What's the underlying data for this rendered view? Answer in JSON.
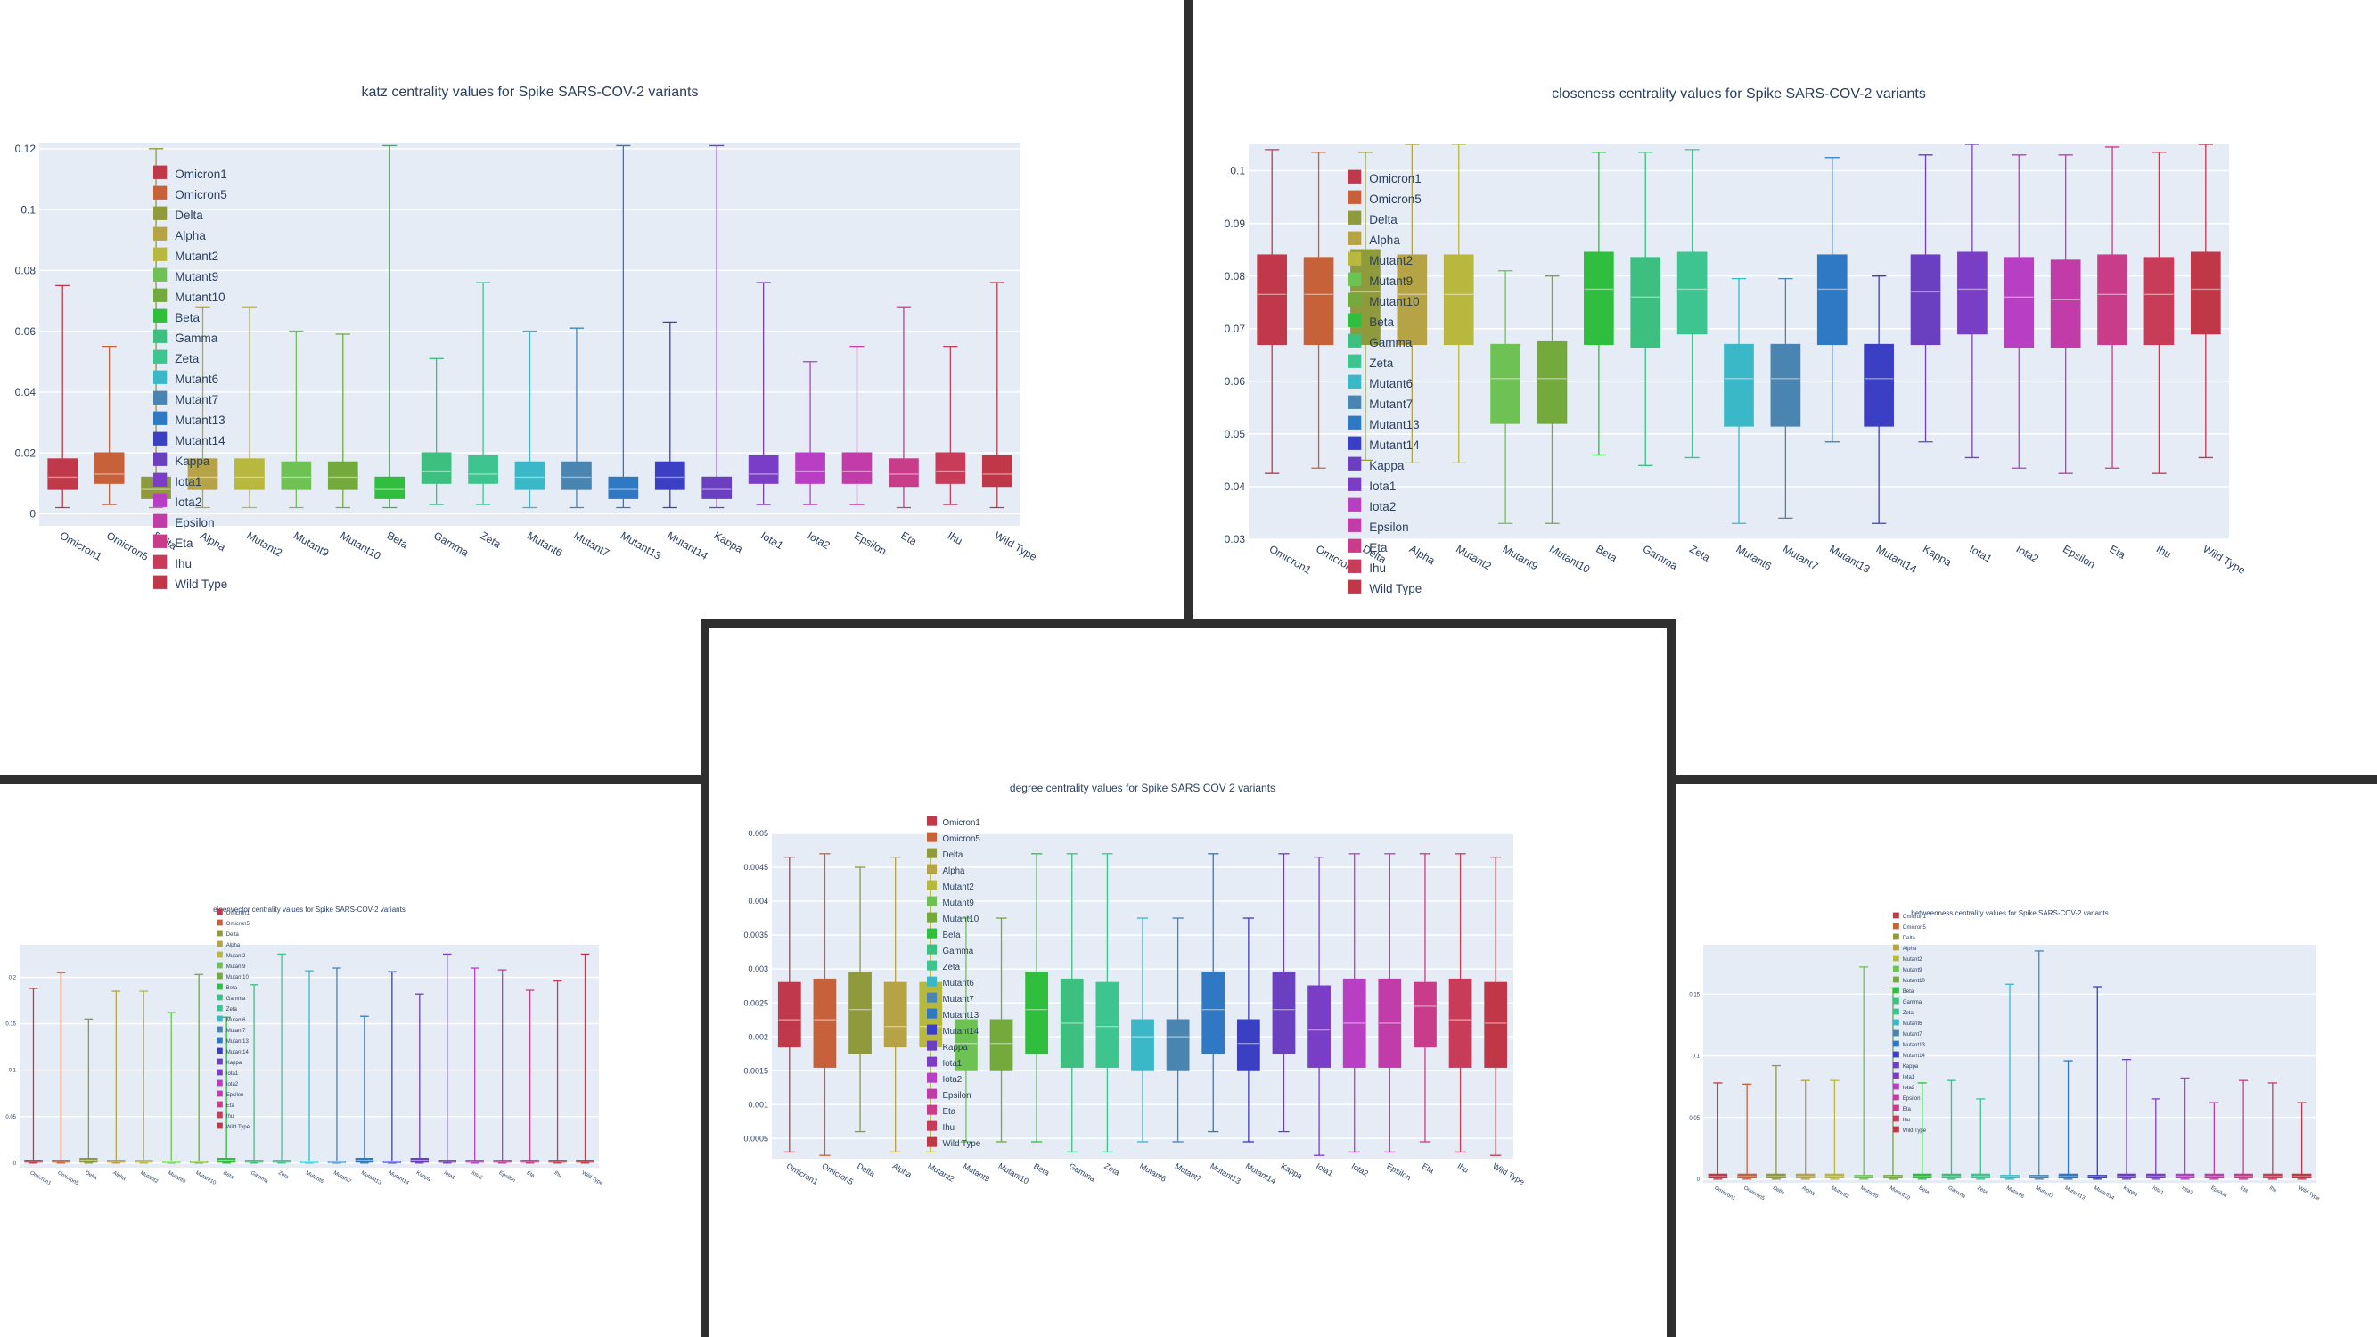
{
  "variants": [
    "Omicron1",
    "Omicron5",
    "Delta",
    "Alpha",
    "Mutant2",
    "Mutant9",
    "Mutant10",
    "Beta",
    "Gamma",
    "Zeta",
    "Mutant6",
    "Mutant7",
    "Mutant13",
    "Mutant14",
    "Kappa",
    "Iota1",
    "Iota2",
    "Epsilon",
    "Eta",
    "Ihu",
    "Wild Type"
  ],
  "colors": [
    "#c0394a",
    "#c7613a",
    "#8f9a3c",
    "#b5a345",
    "#b8b83f",
    "#6ec254",
    "#74a93b",
    "#2fbe3d",
    "#3dbf80",
    "#3ec48f",
    "#3ab8c8",
    "#4a84b0",
    "#2f78c4",
    "#3b3fc4",
    "#6a3fc0",
    "#7a3ec6",
    "#b83ec4",
    "#c13ca8",
    "#c83c8a",
    "#c83c5a",
    "#c03848"
  ],
  "chart_data": [
    {
      "id": "katz",
      "type": "box",
      "title": "katz centrality values for Spike SARS-COV-2 variants",
      "ylim": [
        -0.004,
        0.122
      ],
      "yticks": [
        0,
        0.02,
        0.04,
        0.06,
        0.08,
        0.1,
        0.12
      ],
      "ytick_labels": [
        "0",
        "0.02",
        "0.04",
        "0.06",
        "0.08",
        "0.1",
        "0.12"
      ],
      "grid": true,
      "legend": "right",
      "boxes": [
        {
          "min": 0.002,
          "q1": 0.008,
          "median": 0.012,
          "q3": 0.018,
          "max": 0.075
        },
        {
          "min": 0.003,
          "q1": 0.01,
          "median": 0.013,
          "q3": 0.02,
          "max": 0.055
        },
        {
          "min": 0.002,
          "q1": 0.005,
          "median": 0.008,
          "q3": 0.012,
          "max": 0.12
        },
        {
          "min": 0.002,
          "q1": 0.008,
          "median": 0.012,
          "q3": 0.018,
          "max": 0.068
        },
        {
          "min": 0.002,
          "q1": 0.008,
          "median": 0.012,
          "q3": 0.018,
          "max": 0.068
        },
        {
          "min": 0.002,
          "q1": 0.008,
          "median": 0.012,
          "q3": 0.017,
          "max": 0.06
        },
        {
          "min": 0.002,
          "q1": 0.008,
          "median": 0.012,
          "q3": 0.017,
          "max": 0.059
        },
        {
          "min": 0.002,
          "q1": 0.005,
          "median": 0.008,
          "q3": 0.012,
          "max": 0.121
        },
        {
          "min": 0.003,
          "q1": 0.01,
          "median": 0.014,
          "q3": 0.02,
          "max": 0.051
        },
        {
          "min": 0.003,
          "q1": 0.01,
          "median": 0.013,
          "q3": 0.019,
          "max": 0.076
        },
        {
          "min": 0.002,
          "q1": 0.008,
          "median": 0.012,
          "q3": 0.017,
          "max": 0.06
        },
        {
          "min": 0.002,
          "q1": 0.008,
          "median": 0.012,
          "q3": 0.017,
          "max": 0.061
        },
        {
          "min": 0.002,
          "q1": 0.005,
          "median": 0.008,
          "q3": 0.012,
          "max": 0.121
        },
        {
          "min": 0.002,
          "q1": 0.008,
          "median": 0.012,
          "q3": 0.017,
          "max": 0.063
        },
        {
          "min": 0.002,
          "q1": 0.005,
          "median": 0.008,
          "q3": 0.012,
          "max": 0.121
        },
        {
          "min": 0.003,
          "q1": 0.01,
          "median": 0.013,
          "q3": 0.019,
          "max": 0.076
        },
        {
          "min": 0.003,
          "q1": 0.01,
          "median": 0.014,
          "q3": 0.02,
          "max": 0.05
        },
        {
          "min": 0.003,
          "q1": 0.01,
          "median": 0.014,
          "q3": 0.02,
          "max": 0.055
        },
        {
          "min": 0.002,
          "q1": 0.009,
          "median": 0.013,
          "q3": 0.018,
          "max": 0.068
        },
        {
          "min": 0.003,
          "q1": 0.01,
          "median": 0.014,
          "q3": 0.02,
          "max": 0.055
        },
        {
          "min": 0.002,
          "q1": 0.009,
          "median": 0.013,
          "q3": 0.019,
          "max": 0.076
        }
      ]
    },
    {
      "id": "closeness",
      "type": "box",
      "title": "closeness centrality values for Spike SARS-COV-2 variants",
      "ylim": [
        0.03,
        0.105
      ],
      "yticks": [
        0.03,
        0.04,
        0.05,
        0.06,
        0.07,
        0.08,
        0.09,
        0.1
      ],
      "ytick_labels": [
        "0.03",
        "0.04",
        "0.05",
        "0.06",
        "0.07",
        "0.08",
        "0.09",
        "0.1"
      ],
      "grid": true,
      "legend": "right",
      "boxes": [
        {
          "min": 0.0425,
          "q1": 0.067,
          "median": 0.0765,
          "q3": 0.084,
          "max": 0.104
        },
        {
          "min": 0.0435,
          "q1": 0.067,
          "median": 0.0765,
          "q3": 0.0835,
          "max": 0.1035
        },
        {
          "min": 0.045,
          "q1": 0.067,
          "median": 0.077,
          "q3": 0.085,
          "max": 0.1035
        },
        {
          "min": 0.0445,
          "q1": 0.067,
          "median": 0.0765,
          "q3": 0.084,
          "max": 0.105
        },
        {
          "min": 0.0445,
          "q1": 0.067,
          "median": 0.0765,
          "q3": 0.084,
          "max": 0.105
        },
        {
          "min": 0.033,
          "q1": 0.052,
          "median": 0.0605,
          "q3": 0.067,
          "max": 0.081
        },
        {
          "min": 0.033,
          "q1": 0.052,
          "median": 0.0605,
          "q3": 0.0675,
          "max": 0.08
        },
        {
          "min": 0.046,
          "q1": 0.067,
          "median": 0.0775,
          "q3": 0.0845,
          "max": 0.1035
        },
        {
          "min": 0.044,
          "q1": 0.0665,
          "median": 0.076,
          "q3": 0.0835,
          "max": 0.1035
        },
        {
          "min": 0.0455,
          "q1": 0.069,
          "median": 0.0775,
          "q3": 0.0845,
          "max": 0.104
        },
        {
          "min": 0.033,
          "q1": 0.0515,
          "median": 0.0605,
          "q3": 0.067,
          "max": 0.0795
        },
        {
          "min": 0.034,
          "q1": 0.0515,
          "median": 0.0605,
          "q3": 0.067,
          "max": 0.0795
        },
        {
          "min": 0.0485,
          "q1": 0.067,
          "median": 0.0775,
          "q3": 0.084,
          "max": 0.1025
        },
        {
          "min": 0.033,
          "q1": 0.0515,
          "median": 0.0605,
          "q3": 0.067,
          "max": 0.08
        },
        {
          "min": 0.0485,
          "q1": 0.067,
          "median": 0.077,
          "q3": 0.084,
          "max": 0.103
        },
        {
          "min": 0.0455,
          "q1": 0.069,
          "median": 0.0775,
          "q3": 0.0845,
          "max": 0.105
        },
        {
          "min": 0.0435,
          "q1": 0.0665,
          "median": 0.076,
          "q3": 0.0835,
          "max": 0.103
        },
        {
          "min": 0.0425,
          "q1": 0.0665,
          "median": 0.0755,
          "q3": 0.083,
          "max": 0.103
        },
        {
          "min": 0.0435,
          "q1": 0.067,
          "median": 0.0765,
          "q3": 0.084,
          "max": 0.1045
        },
        {
          "min": 0.0425,
          "q1": 0.067,
          "median": 0.0765,
          "q3": 0.0835,
          "max": 0.1035
        },
        {
          "min": 0.0455,
          "q1": 0.069,
          "median": 0.0775,
          "q3": 0.0845,
          "max": 0.105
        }
      ]
    },
    {
      "id": "eigenvector",
      "type": "box",
      "title": "eigenvector centrality values for Spike SARS-COV-2 variants",
      "ylim": [
        -0.005,
        0.235
      ],
      "yticks": [
        0,
        0.05,
        0.1,
        0.15,
        0.2
      ],
      "ytick_labels": [
        "0",
        "0.05",
        "0.1",
        "0.15",
        "0.2"
      ],
      "grid": true,
      "legend": "right",
      "boxes": [
        {
          "min": 0,
          "q1": 0.001,
          "median": 0.002,
          "q3": 0.003,
          "max": 0.188
        },
        {
          "min": 0,
          "q1": 0.001,
          "median": 0.002,
          "q3": 0.003,
          "max": 0.205
        },
        {
          "min": 0,
          "q1": 0.001,
          "median": 0.003,
          "q3": 0.005,
          "max": 0.155
        },
        {
          "min": 0,
          "q1": 0.001,
          "median": 0.002,
          "q3": 0.003,
          "max": 0.185
        },
        {
          "min": 0,
          "q1": 0.001,
          "median": 0.002,
          "q3": 0.003,
          "max": 0.185
        },
        {
          "min": 0,
          "q1": 0.001,
          "median": 0.001,
          "q3": 0.002,
          "max": 0.162
        },
        {
          "min": 0,
          "q1": 0.001,
          "median": 0.001,
          "q3": 0.002,
          "max": 0.203
        },
        {
          "min": 0,
          "q1": 0.001,
          "median": 0.003,
          "q3": 0.005,
          "max": 0.157
        },
        {
          "min": 0,
          "q1": 0.001,
          "median": 0.002,
          "q3": 0.003,
          "max": 0.192
        },
        {
          "min": 0,
          "q1": 0.001,
          "median": 0.002,
          "q3": 0.003,
          "max": 0.225
        },
        {
          "min": 0,
          "q1": 0.001,
          "median": 0.001,
          "q3": 0.002,
          "max": 0.207
        },
        {
          "min": 0,
          "q1": 0.001,
          "median": 0.001,
          "q3": 0.002,
          "max": 0.21
        },
        {
          "min": 0,
          "q1": 0.001,
          "median": 0.003,
          "q3": 0.005,
          "max": 0.158
        },
        {
          "min": 0,
          "q1": 0.001,
          "median": 0.001,
          "q3": 0.002,
          "max": 0.206
        },
        {
          "min": 0,
          "q1": 0.001,
          "median": 0.003,
          "q3": 0.005,
          "max": 0.182
        },
        {
          "min": 0,
          "q1": 0.001,
          "median": 0.002,
          "q3": 0.003,
          "max": 0.225
        },
        {
          "min": 0,
          "q1": 0.001,
          "median": 0.002,
          "q3": 0.003,
          "max": 0.21
        },
        {
          "min": 0,
          "q1": 0.001,
          "median": 0.002,
          "q3": 0.003,
          "max": 0.208
        },
        {
          "min": 0,
          "q1": 0.001,
          "median": 0.002,
          "q3": 0.003,
          "max": 0.186
        },
        {
          "min": 0,
          "q1": 0.001,
          "median": 0.002,
          "q3": 0.003,
          "max": 0.196
        },
        {
          "min": 0,
          "q1": 0.001,
          "median": 0.002,
          "q3": 0.003,
          "max": 0.225
        }
      ]
    },
    {
      "id": "degree",
      "type": "box",
      "title": "degree centrality values for Spike SARS COV 2 variants",
      "ylim": [
        0.0002,
        0.005
      ],
      "yticks": [
        0.0005,
        0.001,
        0.0015,
        0.002,
        0.0025,
        0.003,
        0.0035,
        0.004,
        0.0045,
        0.005
      ],
      "ytick_labels": [
        "0.0005",
        "0.001",
        "0.0015",
        "0.002",
        "0.0025",
        "0.003",
        "0.0035",
        "0.004",
        "0.0045",
        "0.005"
      ],
      "grid": true,
      "legend": "right",
      "boxes": [
        {
          "min": 0.0003,
          "q1": 0.00185,
          "median": 0.00225,
          "q3": 0.0028,
          "max": 0.00465
        },
        {
          "min": 0.00025,
          "q1": 0.00155,
          "median": 0.00225,
          "q3": 0.00285,
          "max": 0.0047
        },
        {
          "min": 0.0006,
          "q1": 0.00175,
          "median": 0.0024,
          "q3": 0.00295,
          "max": 0.0045
        },
        {
          "min": 0.0003,
          "q1": 0.00185,
          "median": 0.00215,
          "q3": 0.0028,
          "max": 0.00465
        },
        {
          "min": 0.0003,
          "q1": 0.00185,
          "median": 0.00215,
          "q3": 0.0028,
          "max": 0.00465
        },
        {
          "min": 0.00045,
          "q1": 0.0015,
          "median": 0.0019,
          "q3": 0.00225,
          "max": 0.00375
        },
        {
          "min": 0.00045,
          "q1": 0.0015,
          "median": 0.0019,
          "q3": 0.00225,
          "max": 0.00375
        },
        {
          "min": 0.00045,
          "q1": 0.00175,
          "median": 0.0024,
          "q3": 0.00295,
          "max": 0.0047
        },
        {
          "min": 0.0003,
          "q1": 0.00155,
          "median": 0.0022,
          "q3": 0.00285,
          "max": 0.0047
        },
        {
          "min": 0.0003,
          "q1": 0.00155,
          "median": 0.00215,
          "q3": 0.0028,
          "max": 0.0047
        },
        {
          "min": 0.00045,
          "q1": 0.0015,
          "median": 0.002,
          "q3": 0.00225,
          "max": 0.00375
        },
        {
          "min": 0.00045,
          "q1": 0.0015,
          "median": 0.002,
          "q3": 0.00225,
          "max": 0.00375
        },
        {
          "min": 0.0006,
          "q1": 0.00175,
          "median": 0.0024,
          "q3": 0.00295,
          "max": 0.0047
        },
        {
          "min": 0.00045,
          "q1": 0.0015,
          "median": 0.0019,
          "q3": 0.00225,
          "max": 0.00375
        },
        {
          "min": 0.0006,
          "q1": 0.00175,
          "median": 0.0024,
          "q3": 0.00295,
          "max": 0.0047
        },
        {
          "min": 0.00025,
          "q1": 0.00155,
          "median": 0.0021,
          "q3": 0.00275,
          "max": 0.00465
        },
        {
          "min": 0.0003,
          "q1": 0.00155,
          "median": 0.0022,
          "q3": 0.00285,
          "max": 0.0047
        },
        {
          "min": 0.0003,
          "q1": 0.00155,
          "median": 0.0022,
          "q3": 0.00285,
          "max": 0.0047
        },
        {
          "min": 0.00045,
          "q1": 0.00185,
          "median": 0.00245,
          "q3": 0.0028,
          "max": 0.0047
        },
        {
          "min": 0.0003,
          "q1": 0.00155,
          "median": 0.00225,
          "q3": 0.00285,
          "max": 0.0047
        },
        {
          "min": 0.00025,
          "q1": 0.00155,
          "median": 0.0022,
          "q3": 0.0028,
          "max": 0.00465
        }
      ]
    },
    {
      "id": "betweenness",
      "type": "box",
      "title": "betweenness centrality values for Spike SARS-COV-2 variants",
      "ylim": [
        -0.003,
        0.19
      ],
      "yticks": [
        0,
        0.05,
        0.1,
        0.15
      ],
      "ytick_labels": [
        "0",
        "0.05",
        "0.1",
        "0.15"
      ],
      "grid": true,
      "legend": "right",
      "boxes": [
        {
          "min": 0,
          "q1": 0.001,
          "median": 0.002,
          "q3": 0.004,
          "max": 0.078
        },
        {
          "min": 0,
          "q1": 0.001,
          "median": 0.002,
          "q3": 0.004,
          "max": 0.077
        },
        {
          "min": 0,
          "q1": 0.001,
          "median": 0.002,
          "q3": 0.004,
          "max": 0.092
        },
        {
          "min": 0,
          "q1": 0.001,
          "median": 0.002,
          "q3": 0.004,
          "max": 0.08
        },
        {
          "min": 0,
          "q1": 0.001,
          "median": 0.002,
          "q3": 0.004,
          "max": 0.08
        },
        {
          "min": 0,
          "q1": 0.001,
          "median": 0.002,
          "q3": 0.003,
          "max": 0.172
        },
        {
          "min": 0,
          "q1": 0.001,
          "median": 0.002,
          "q3": 0.003,
          "max": 0.155
        },
        {
          "min": 0,
          "q1": 0.001,
          "median": 0.002,
          "q3": 0.004,
          "max": 0.078
        },
        {
          "min": 0,
          "q1": 0.001,
          "median": 0.002,
          "q3": 0.004,
          "max": 0.08
        },
        {
          "min": 0,
          "q1": 0.001,
          "median": 0.002,
          "q3": 0.004,
          "max": 0.065
        },
        {
          "min": 0,
          "q1": 0.001,
          "median": 0.002,
          "q3": 0.003,
          "max": 0.158
        },
        {
          "min": 0,
          "q1": 0.001,
          "median": 0.002,
          "q3": 0.003,
          "max": 0.185
        },
        {
          "min": 0,
          "q1": 0.001,
          "median": 0.002,
          "q3": 0.004,
          "max": 0.096
        },
        {
          "min": 0,
          "q1": 0.001,
          "median": 0.002,
          "q3": 0.003,
          "max": 0.156
        },
        {
          "min": 0,
          "q1": 0.001,
          "median": 0.002,
          "q3": 0.004,
          "max": 0.097
        },
        {
          "min": 0,
          "q1": 0.001,
          "median": 0.002,
          "q3": 0.004,
          "max": 0.065
        },
        {
          "min": 0,
          "q1": 0.001,
          "median": 0.002,
          "q3": 0.004,
          "max": 0.082
        },
        {
          "min": 0,
          "q1": 0.001,
          "median": 0.002,
          "q3": 0.004,
          "max": 0.062
        },
        {
          "min": 0,
          "q1": 0.001,
          "median": 0.002,
          "q3": 0.004,
          "max": 0.08
        },
        {
          "min": 0,
          "q1": 0.001,
          "median": 0.002,
          "q3": 0.004,
          "max": 0.078
        },
        {
          "min": 0,
          "q1": 0.001,
          "median": 0.002,
          "q3": 0.004,
          "max": 0.062
        }
      ]
    }
  ]
}
